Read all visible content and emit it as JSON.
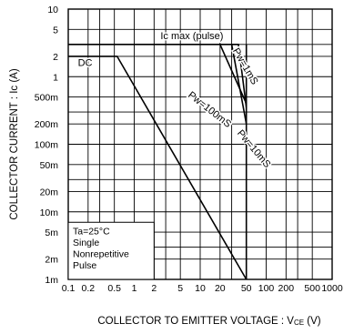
{
  "chart_data": {
    "type": "line",
    "xlabel": "COLLECTOR TO EMITTER VOLTAGE : V",
    "xlabel_sub": "CE",
    "xlabel_unit": " (V)",
    "ylabel": "COLLECTOR CURRENT : Ic (A)",
    "x_scale": "log",
    "y_scale": "log",
    "xlim": [
      0.1,
      1000
    ],
    "ylim": [
      0.001,
      10
    ],
    "grid": true,
    "x_ticks": [
      {
        "v": 0.1,
        "label": "0.1"
      },
      {
        "v": 0.2,
        "label": "0.2"
      },
      {
        "v": 0.5,
        "label": "0.5"
      },
      {
        "v": 1,
        "label": "1"
      },
      {
        "v": 2,
        "label": "2"
      },
      {
        "v": 5,
        "label": "5"
      },
      {
        "v": 10,
        "label": "10"
      },
      {
        "v": 20,
        "label": "20"
      },
      {
        "v": 50,
        "label": "50"
      },
      {
        "v": 100,
        "label": "100"
      },
      {
        "v": 200,
        "label": "200"
      },
      {
        "v": 500,
        "label": "500"
      },
      {
        "v": 1000,
        "label": "1000"
      }
    ],
    "y_ticks": [
      {
        "v": 10,
        "label": "10"
      },
      {
        "v": 5,
        "label": "5"
      },
      {
        "v": 2,
        "label": "2"
      },
      {
        "v": 1,
        "label": "1"
      },
      {
        "v": 0.5,
        "label": "500m"
      },
      {
        "v": 0.2,
        "label": "200m"
      },
      {
        "v": 0.1,
        "label": "100m"
      },
      {
        "v": 0.05,
        "label": "50m"
      },
      {
        "v": 0.02,
        "label": "20m"
      },
      {
        "v": 0.01,
        "label": "10m"
      },
      {
        "v": 0.005,
        "label": "5m"
      },
      {
        "v": 0.002,
        "label": "2m"
      },
      {
        "v": 0.001,
        "label": "1m"
      }
    ],
    "series": [
      {
        "name": "Ic max (pulse)",
        "points": [
          [
            0.1,
            3
          ],
          [
            20,
            3
          ]
        ]
      },
      {
        "name": "Pw=1mS",
        "points": [
          [
            20,
            3
          ],
          [
            38,
            3
          ],
          [
            50,
            0.35
          ]
        ]
      },
      {
        "name": "Pw=10mS",
        "points": [
          [
            30,
            3
          ],
          [
            50,
            0.2
          ]
        ]
      },
      {
        "name": "Pw=100mS",
        "points": [
          [
            20,
            3
          ],
          [
            50,
            0.4
          ]
        ]
      },
      {
        "name": "DC",
        "points": [
          [
            0.1,
            2
          ],
          [
            0.55,
            2
          ],
          [
            50,
            0.001
          ]
        ]
      },
      {
        "name": "",
        "points": [
          [
            50,
            0.001
          ],
          [
            50,
            3
          ]
        ]
      }
    ],
    "annotations": [
      {
        "text": "Ic max (pulse)",
        "x": 2.5,
        "y": 3.6
      },
      {
        "text": "DC",
        "x": 0.14,
        "y": 1.45
      },
      {
        "text": "Pw=1mS",
        "x": 44,
        "y": 1.35,
        "rotate": 60
      },
      {
        "text": "Pw=100mS",
        "x": 13,
        "y": 0.3,
        "rotate": 38
      },
      {
        "text": "Pw=10mS",
        "x": 60,
        "y": 0.08,
        "rotate": 50
      }
    ],
    "legend_box": [
      "Ta=25°C",
      "Single",
      "Nonrepetitive",
      "Pulse"
    ]
  }
}
